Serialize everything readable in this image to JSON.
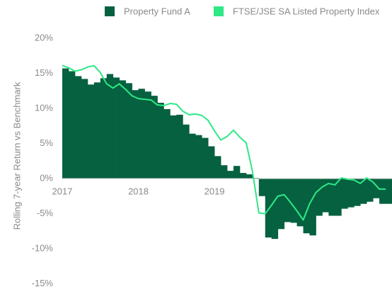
{
  "chart_data": {
    "type": "bar_line",
    "ylabel": "Rolling 7-year Return vs Benchmark",
    "categories": [
      "2017",
      null,
      null,
      null,
      null,
      null,
      null,
      null,
      null,
      null,
      null,
      null,
      "2018",
      null,
      null,
      null,
      null,
      null,
      null,
      null,
      null,
      null,
      null,
      null,
      "2019",
      null,
      null,
      null,
      null,
      null,
      null,
      null,
      null,
      null,
      null,
      null,
      null,
      null,
      null,
      null,
      null,
      null,
      null,
      null,
      null,
      null,
      null,
      null,
      null,
      null,
      null,
      null
    ],
    "series": [
      {
        "name": "Property Fund A",
        "color": "#05613f",
        "values": [
          15.7,
          15.3,
          14.6,
          14.2,
          13.4,
          13.7,
          14.3,
          14.9,
          14.4,
          14.0,
          13.6,
          12.6,
          12.8,
          12.4,
          11.8,
          10.8,
          9.9,
          9.0,
          9.1,
          7.7,
          6.4,
          6.2,
          5.8,
          4.6,
          3.2,
          1.9,
          1.1,
          1.8,
          0.8,
          0.6,
          0.1,
          -2.5,
          -8.4,
          -8.6,
          -7.2,
          -6.2,
          -6.3,
          -6.8,
          -7.8,
          -8.1,
          -5.3,
          -4.8,
          -5.3,
          -5.3,
          -4.3,
          -4.1,
          -3.9,
          -3.6,
          -3.3,
          -2.8,
          -3.6,
          -3.6
        ]
      },
      {
        "name": "FTSE/JSE SA Listed Property Index",
        "color": "#2ee886",
        "values": [
          16.1,
          15.8,
          15.3,
          15.5,
          15.9,
          16.1,
          15.1,
          13.5,
          12.9,
          13.5,
          12.7,
          11.8,
          11.4,
          11.3,
          11.2,
          10.5,
          10.4,
          10.7,
          10.6,
          9.6,
          9.1,
          9.2,
          9.0,
          8.3,
          6.8,
          5.5,
          6.0,
          6.9,
          5.9,
          5.1,
          1.0,
          -4.9,
          -5.0,
          -3.8,
          -2.5,
          -2.3,
          -3.4,
          -4.6,
          -5.9,
          -3.6,
          -2.0,
          -1.2,
          -0.7,
          -0.9,
          0.1,
          -0.1,
          -0.2,
          -0.7,
          0.1,
          -0.5,
          -1.5,
          -1.5
        ]
      }
    ],
    "ylim": [
      -15.3,
      20.5
    ],
    "yticks": [
      {
        "value": 20,
        "label": "20%"
      },
      {
        "value": 15,
        "label": "15%"
      },
      {
        "value": 10,
        "label": "10%"
      },
      {
        "value": 5,
        "label": "5%"
      },
      {
        "value": 0,
        "label": "0%"
      },
      {
        "value": -5,
        "label": "-5%"
      },
      {
        "value": -10,
        "label": "-10%"
      },
      {
        "value": -15,
        "label": "-15%"
      }
    ]
  }
}
